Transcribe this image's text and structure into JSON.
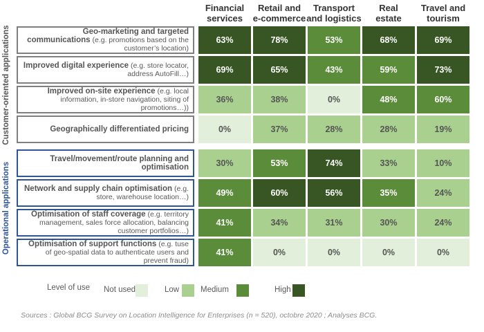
{
  "chart_data": {
    "type": "heatmap",
    "columns": [
      "Financial\nservices",
      "Retail and\ne-commerce",
      "Transport\nand logistics",
      "Real\nestate",
      "Travel and\ntourism"
    ],
    "groups": [
      {
        "name": "Customer-oriented applications",
        "color": "#555555",
        "border_color": "#7f7f7f",
        "rows": [
          {
            "label": "Geo-marketing and targeted communications",
            "note": "(e.g. promotions based on the customer’s location)",
            "values": [
              63,
              78,
              53,
              68,
              69
            ],
            "value_labels": [
              "63%",
              "78%",
              "53%",
              "68%",
              "69%"
            ],
            "levels": [
              "High",
              "High",
              "Medium",
              "High",
              "High"
            ]
          },
          {
            "label": "Improved digital experience",
            "note": "(e.g. store locator, address AutoFill…)",
            "values": [
              69,
              65,
              43,
              59,
              73
            ],
            "value_labels": [
              "69%",
              "65%",
              "43%",
              "59%",
              "73%"
            ],
            "levels": [
              "High",
              "High",
              "Medium",
              "Medium",
              "High"
            ]
          },
          {
            "label": "Improved on-site experience",
            "note": "(e.g. local information, in-store navigation, siting of promotions…))",
            "values": [
              36,
              38,
              0,
              48,
              60
            ],
            "value_labels": [
              "36%",
              "38%",
              "0%",
              "48%",
              "60%"
            ],
            "levels": [
              "Low",
              "Low",
              "Not used",
              "Medium",
              "Medium"
            ]
          },
          {
            "label": "Geographically differentiated pricing",
            "note": null,
            "values": [
              0,
              37,
              28,
              28,
              19
            ],
            "value_labels": [
              "0%",
              "37%",
              "28%",
              "28%",
              "19%"
            ],
            "levels": [
              "Not used",
              "Low",
              "Low",
              "Low",
              "Low"
            ]
          }
        ]
      },
      {
        "name": "Operational applications",
        "color": "#2e5597",
        "border_color": "#2e5597",
        "rows": [
          {
            "label": "Travel/movement/route planning and optimisation",
            "note": null,
            "values": [
              30,
              53,
              74,
              33,
              10
            ],
            "value_labels": [
              "30%",
              "53%",
              "74%",
              "33%",
              "10%"
            ],
            "levels": [
              "Low",
              "Medium",
              "High",
              "Low",
              "Low"
            ]
          },
          {
            "label": "Network and supply chain optimisation",
            "note": "(e.g. store, warehouse location…)",
            "values": [
              49,
              60,
              56,
              35,
              24
            ],
            "value_labels": [
              "49%",
              "60%",
              "56%",
              "35%",
              "24%"
            ],
            "levels": [
              "Medium",
              "High",
              "High",
              "Medium",
              "Low"
            ]
          },
          {
            "label": "Optimisation of staff coverage",
            "note": "(e.g. territory management, sales force allocation, balancing customer portfolios…)",
            "values": [
              41,
              34,
              31,
              30,
              24
            ],
            "value_labels": [
              "41%",
              "34%",
              "31%",
              "30%",
              "24%"
            ],
            "levels": [
              "Medium",
              "Low",
              "Low",
              "Low",
              "Low"
            ]
          },
          {
            "label": "Optimisation of support functions",
            "note": "(e.g. tuse of geo-spatial data to authenticate users and prevent fraud)",
            "values": [
              41,
              0,
              0,
              0,
              0
            ],
            "value_labels": [
              "41%",
              "0%",
              "0%",
              "0%",
              "0%"
            ],
            "levels": [
              "Medium",
              "Not used",
              "Not used",
              "Not used",
              "Not used"
            ]
          }
        ]
      }
    ],
    "legend": {
      "title": "Level of use",
      "levels": [
        {
          "name": "Not used",
          "color": "#e2efda",
          "text_color": "#555555"
        },
        {
          "name": "Low",
          "color": "#a9d08e",
          "text_color": "#555555"
        },
        {
          "name": "Medium",
          "color": "#5b8c3a",
          "text_color": "#ffffff"
        },
        {
          "name": "High",
          "color": "#375623",
          "text_color": "#ffffff"
        }
      ]
    },
    "source": "Sources : Global BCG Survey on Location Intelligence for Enterprises (n = 520), octobre 2020 ; Analyses BCG."
  }
}
